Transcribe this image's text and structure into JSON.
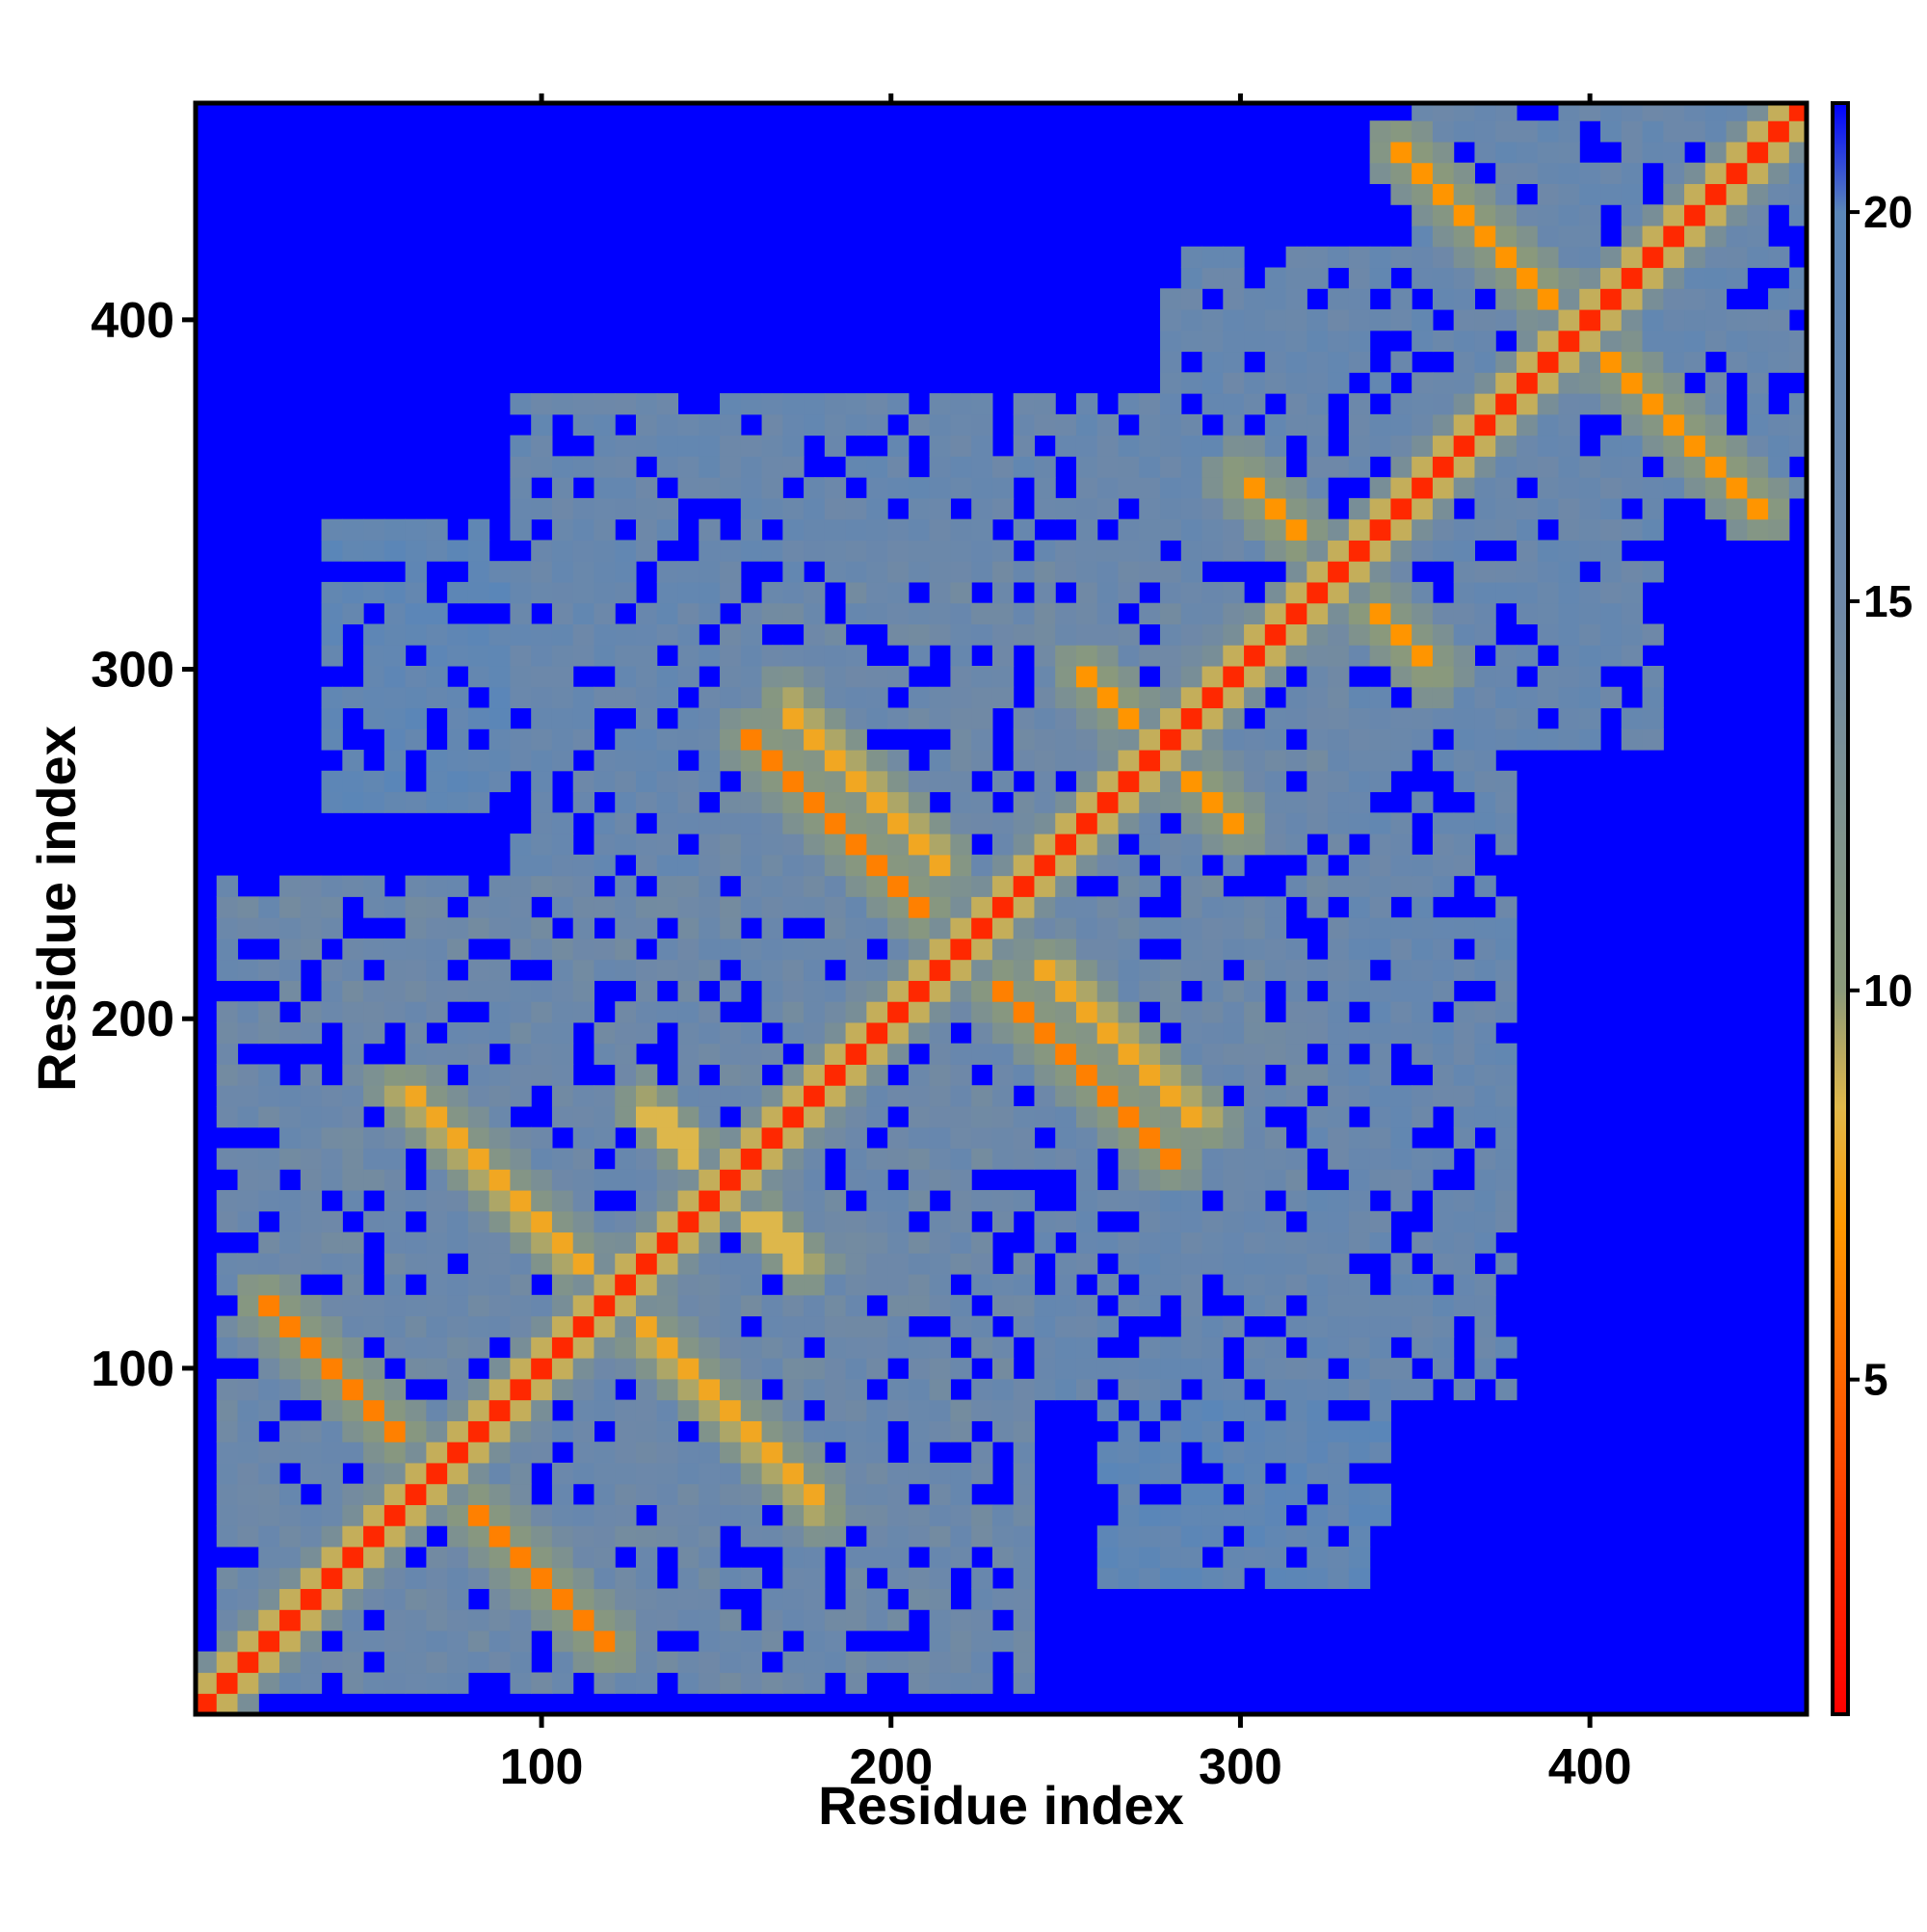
{
  "chart_data": {
    "type": "heatmap",
    "title": "",
    "xlabel": "Residue index",
    "ylabel": "Residue index",
    "xlim": [
      1,
      462
    ],
    "ylim": [
      1,
      462
    ],
    "xticks": [
      100,
      200,
      300,
      400
    ],
    "yticks": [
      100,
      200,
      300,
      400
    ],
    "colorbar": {
      "range": [
        0.7,
        21.4
      ],
      "ticks": [
        5,
        10,
        15,
        20
      ],
      "colors": [
        {
          "value": 0.7,
          "color": "#ff0000"
        },
        {
          "value": 3,
          "color": "#ff3300"
        },
        {
          "value": 5,
          "color": "#ff6600"
        },
        {
          "value": 7,
          "color": "#ff9900"
        },
        {
          "value": 8.5,
          "color": "#e0b84a"
        },
        {
          "value": 10,
          "color": "#8b9a7a"
        },
        {
          "value": 15,
          "color": "#6e88a8"
        },
        {
          "value": 20,
          "color": "#5a86b8"
        },
        {
          "value": 21.4,
          "color": "#0000ff"
        }
      ]
    },
    "values_description_free": true,
    "matrix_model": {
      "n_residues": 462,
      "diagonal_value": 3.8,
      "background_value": 21.4,
      "contact_features": [
        {
          "x": [
            20,
            120
          ],
          "y": [
            120,
            20
          ],
          "value": 6
        },
        {
          "x": [
            60,
            180
          ],
          "y": [
            180,
            60
          ],
          "value": 6
        },
        {
          "x": [
            130,
            175
          ],
          "y": [
            175,
            130
          ],
          "value": 6
        },
        {
          "x": [
            160,
            215
          ],
          "y": [
            280,
            225
          ],
          "value": 6
        },
        {
          "x": [
            245,
            290
          ],
          "y": [
            215,
            170
          ],
          "value": 6
        },
        {
          "x": [
            255,
            300
          ],
          "y": [
            300,
            255
          ],
          "value": 6
        },
        {
          "x": [
            300,
            350
          ],
          "y": [
            355,
            305
          ],
          "value": 6
        },
        {
          "x": [
            345,
            400
          ],
          "y": [
            450,
            395
          ],
          "value": 6
        },
        {
          "x": [
            400,
            450
          ],
          "y": [
            400,
            450
          ],
          "value": 6
        }
      ],
      "dense_regions": [
        {
          "x": [
            10,
            240
          ],
          "y": [
            10,
            240
          ],
          "value": 14
        },
        {
          "x": [
            180,
            320
          ],
          "y": [
            150,
            330
          ],
          "value": 14
        },
        {
          "x": [
            220,
            380
          ],
          "y": [
            90,
            300
          ],
          "value": 15
        },
        {
          "x": [
            280,
            410
          ],
          "y": [
            300,
            420
          ],
          "value": 15
        },
        {
          "x": [
            380,
            460
          ],
          "y": [
            350,
            460
          ],
          "value": 15
        },
        {
          "x": [
            130,
            260
          ],
          "y": [
            240,
            340
          ],
          "value": 16
        },
        {
          "x": [
            40,
            140
          ],
          "y": [
            260,
            340
          ],
          "value": 17
        }
      ]
    }
  }
}
